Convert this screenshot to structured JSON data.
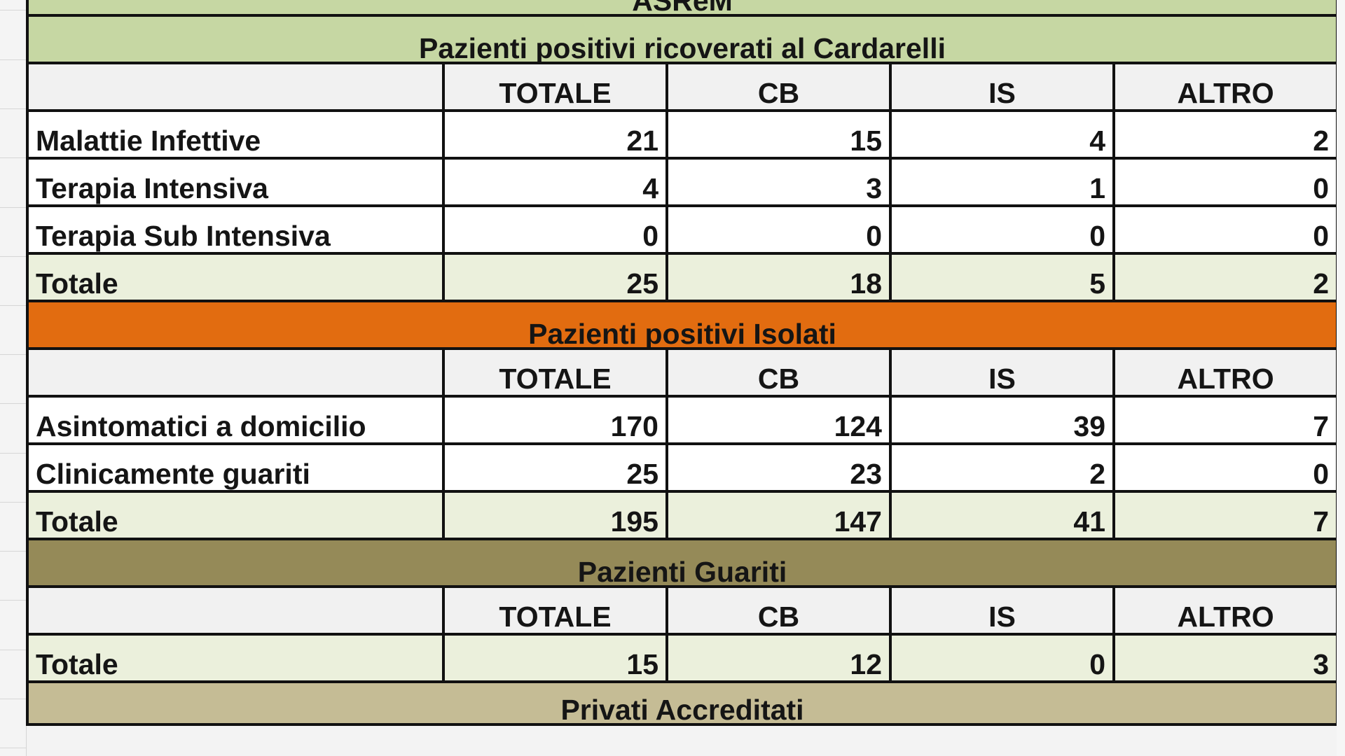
{
  "header_partial": "ASReM",
  "columns": [
    "TOTALE",
    "CB",
    "IS",
    "ALTRO"
  ],
  "sections": [
    {
      "title": "Pazienti positivi ricoverati al Cardarelli",
      "rows": [
        {
          "label": "Malattie Infettive",
          "values": [
            "21",
            "15",
            "4",
            "2"
          ]
        },
        {
          "label": "Terapia Intensiva",
          "values": [
            "4",
            "3",
            "1",
            "0"
          ]
        },
        {
          "label": "Terapia Sub Intensiva",
          "values": [
            "0",
            "0",
            "0",
            "0"
          ]
        }
      ],
      "total": {
        "label": "Totale",
        "values": [
          "25",
          "18",
          "5",
          "2"
        ]
      }
    },
    {
      "title": "Pazienti positivi Isolati",
      "rows": [
        {
          "label": "Asintomatici a domicilio",
          "values": [
            "170",
            "124",
            "39",
            "7"
          ]
        },
        {
          "label": "Clinicamente guariti",
          "values": [
            "25",
            "23",
            "2",
            "0"
          ]
        }
      ],
      "total": {
        "label": "Totale",
        "values": [
          "195",
          "147",
          "41",
          "7"
        ]
      }
    },
    {
      "title": "Pazienti Guariti",
      "rows": [],
      "total": {
        "label": "Totale",
        "values": [
          "15",
          "12",
          "0",
          "3"
        ]
      }
    },
    {
      "title": "Privati Accreditati"
    }
  ],
  "colors": {
    "section1": "#c6d7a3",
    "section2": "#e26c10",
    "section3": "#958a58",
    "section4": "#c5bc95",
    "total_row": "#ebf0dc",
    "header_row": "#f1f1f1"
  }
}
